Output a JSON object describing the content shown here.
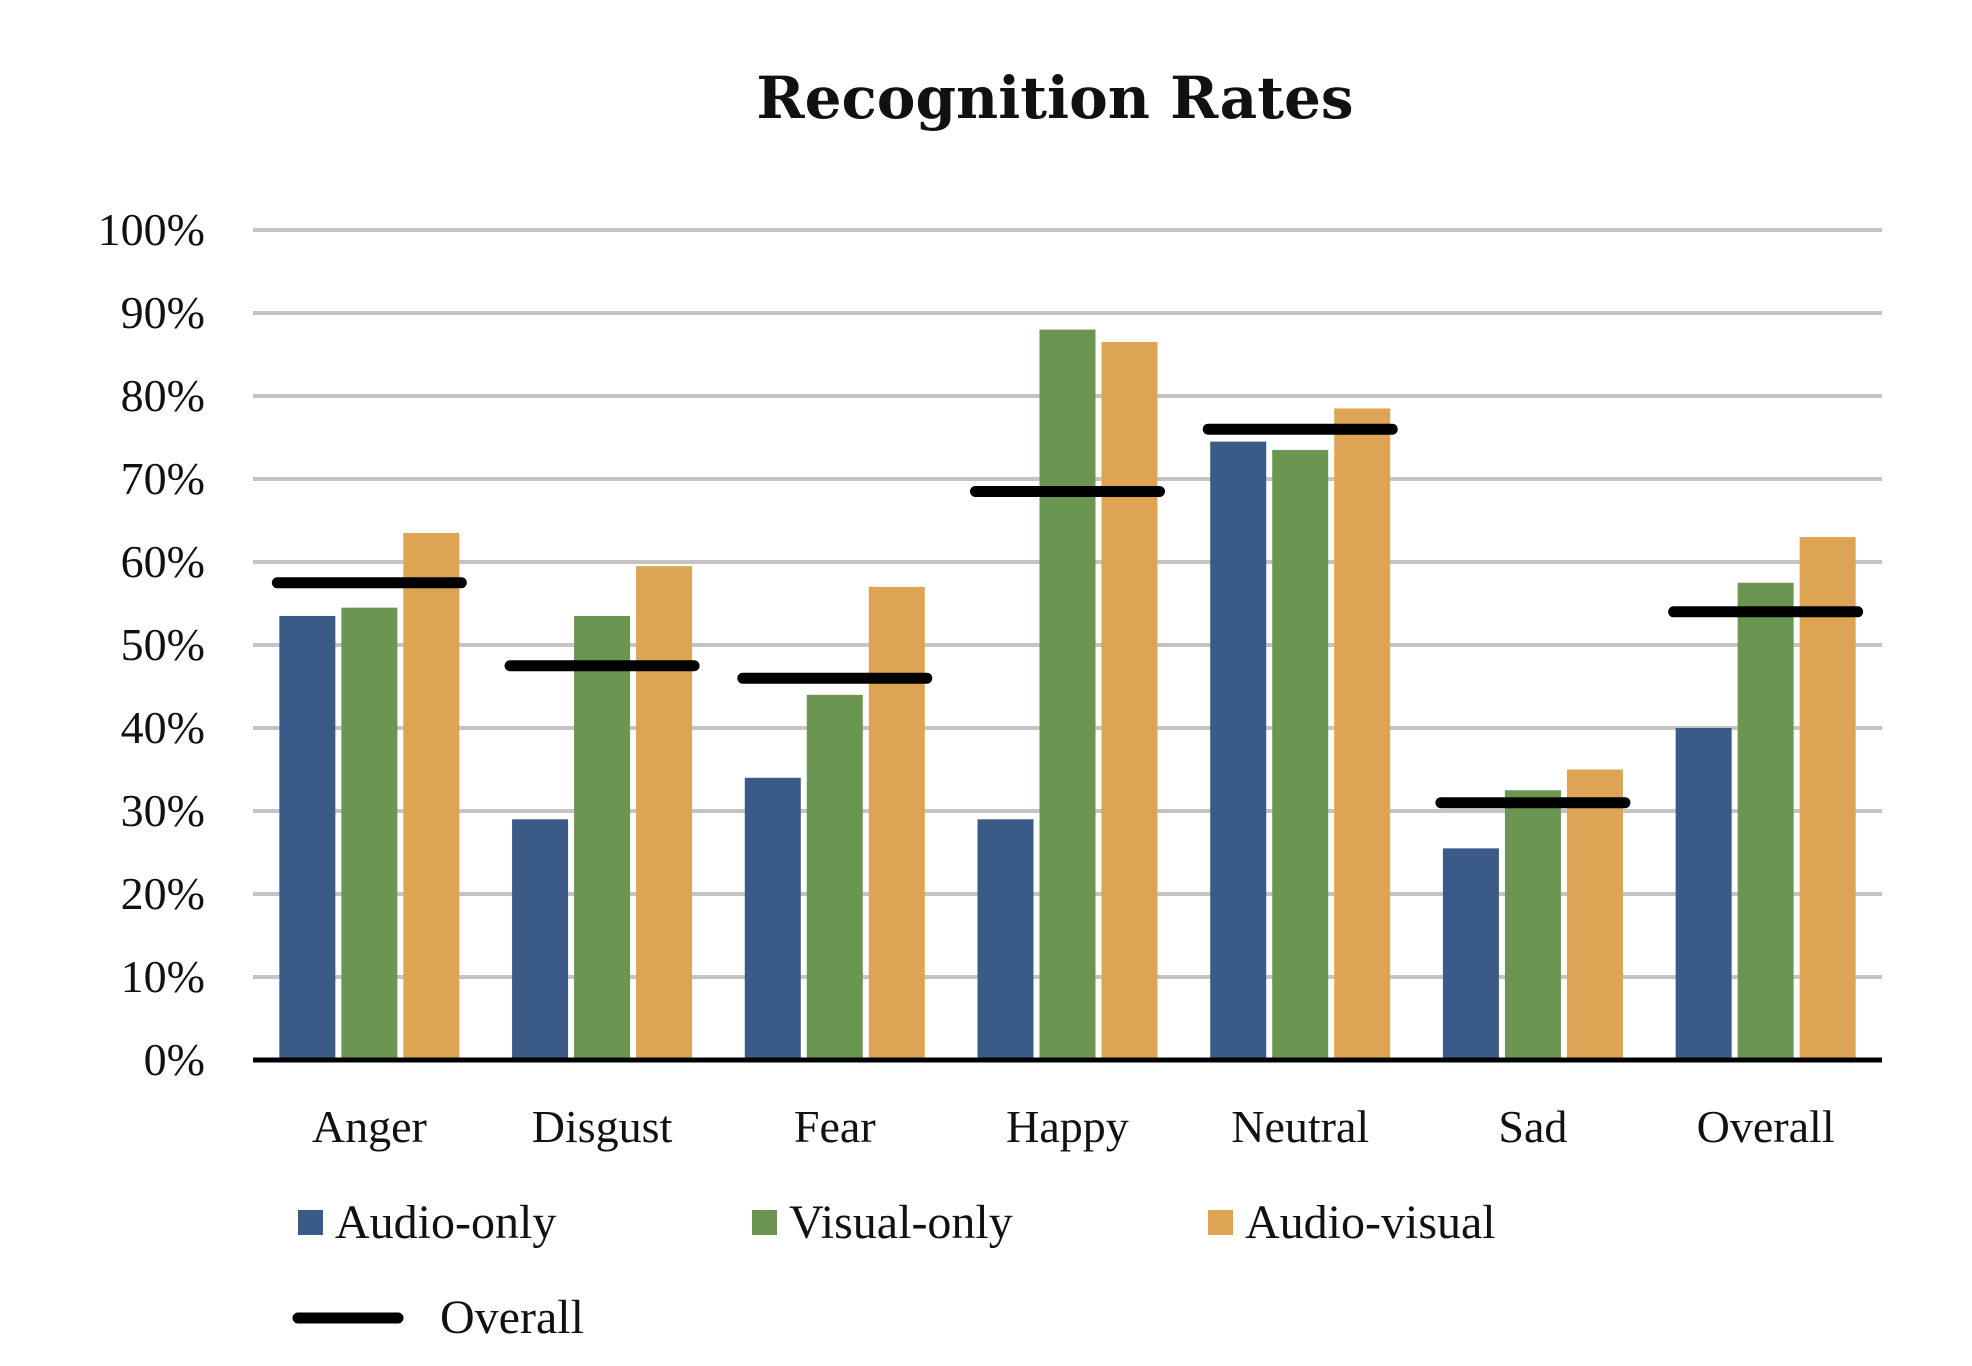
{
  "chart_data": {
    "type": "bar",
    "title": "Recognition Rates",
    "xlabel": "",
    "ylabel": "",
    "ylim": [
      0,
      100
    ],
    "y_ticks": [
      0,
      10,
      20,
      30,
      40,
      50,
      60,
      70,
      80,
      90,
      100
    ],
    "y_tick_labels": [
      "0%",
      "10%",
      "20%",
      "30%",
      "40%",
      "50%",
      "60%",
      "70%",
      "80%",
      "90%",
      "100%"
    ],
    "grid": true,
    "legend_position": "bottom",
    "categories": [
      "Anger",
      "Disgust",
      "Fear",
      "Happy",
      "Neutral",
      "Sad",
      "Overall"
    ],
    "series": [
      {
        "name": "Audio-only",
        "color": "#3a5a87",
        "values": [
          53.5,
          29,
          34,
          29,
          74.5,
          25.5,
          40
        ]
      },
      {
        "name": "Visual-only",
        "color": "#6b9651",
        "values": [
          54.5,
          53.5,
          44,
          88,
          73.5,
          32.5,
          57.5
        ]
      },
      {
        "name": "Audio-visual",
        "color": "#dda453",
        "values": [
          63.5,
          59.5,
          57,
          86.5,
          78.5,
          35,
          63
        ]
      }
    ],
    "overall_line": {
      "name": "Overall",
      "type": "marker",
      "color": "#000000",
      "values": [
        57.5,
        47.5,
        46,
        68.5,
        76,
        31,
        54
      ]
    }
  }
}
